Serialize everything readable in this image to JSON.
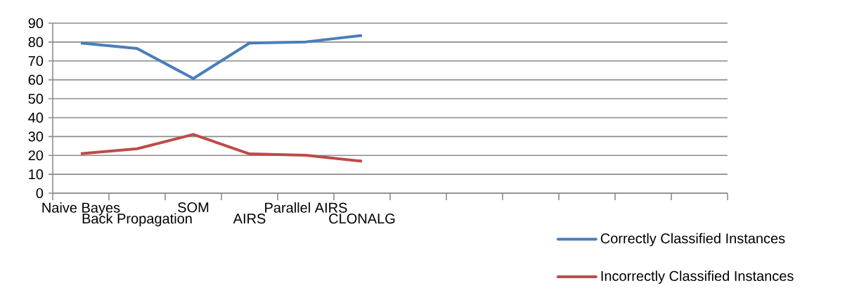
{
  "chart_data": {
    "type": "line",
    "categories": [
      "Naive Bayes",
      "Back Propagation",
      "SOM",
      "AIRS",
      "Parallel AIRS",
      "CLONALG",
      null,
      null,
      null,
      null,
      null,
      null
    ],
    "series": [
      {
        "name": "Correctly Classified Instances",
        "color": "#4a7ebb",
        "values": [
          79.5,
          76.6,
          60.7,
          79.5,
          80.1,
          83.5,
          null,
          null,
          null,
          null,
          null,
          null
        ]
      },
      {
        "name": "Incorrectly Classified Instances",
        "color": "#be4b48",
        "values": [
          20.9,
          23.5,
          31.1,
          20.8,
          20.1,
          16.9,
          null,
          null,
          null,
          null,
          null,
          null
        ]
      }
    ],
    "ylim": [
      0,
      90
    ],
    "yticks": [
      0,
      10,
      20,
      30,
      40,
      50,
      60,
      70,
      80,
      90
    ],
    "grid": "y",
    "legend": "bottom right",
    "marker": "none",
    "line_style": "solid"
  }
}
